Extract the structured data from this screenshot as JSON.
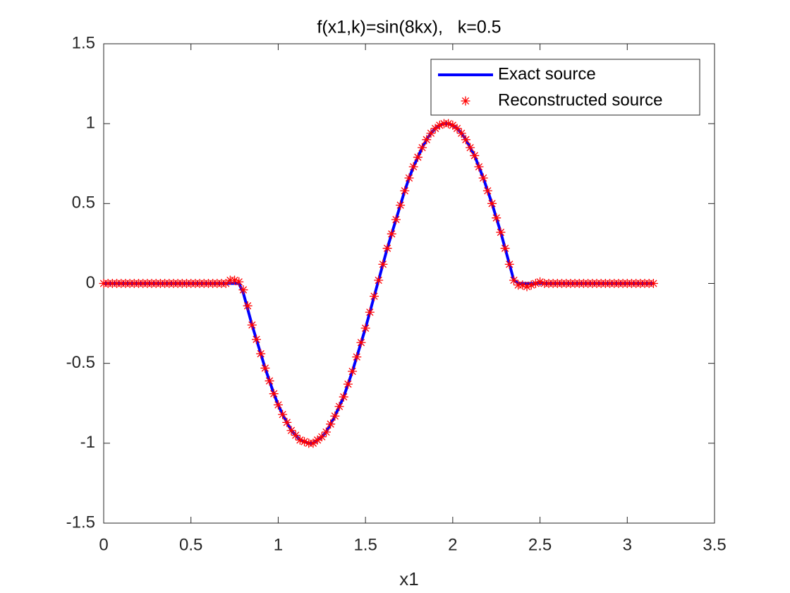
{
  "chart_data": {
    "type": "line",
    "title": "f(x1,k)=sin(8kx),   k=0.5",
    "xlabel": "x1",
    "xlim": [
      0,
      3.5
    ],
    "ylim": [
      -1.5,
      1.5
    ],
    "xticks": [
      0,
      0.5,
      1,
      1.5,
      2,
      2.5,
      3,
      3.5
    ],
    "yticks": [
      -1.5,
      -1,
      -0.5,
      0,
      0.5,
      1,
      1.5
    ],
    "grid": false,
    "legend": "northeast",
    "x": [
      0,
      0.025,
      0.05,
      0.075,
      0.1,
      0.125,
      0.15,
      0.175,
      0.2,
      0.225,
      0.25,
      0.275,
      0.3,
      0.325,
      0.35,
      0.375,
      0.4,
      0.425,
      0.45,
      0.475,
      0.5,
      0.525,
      0.55,
      0.575,
      0.6,
      0.625,
      0.65,
      0.675,
      0.7,
      0.725,
      0.75,
      0.775,
      0.8,
      0.825,
      0.85,
      0.875,
      0.9,
      0.925,
      0.95,
      0.975,
      1,
      1.025,
      1.05,
      1.075,
      1.1,
      1.125,
      1.15,
      1.175,
      1.2,
      1.225,
      1.25,
      1.275,
      1.3,
      1.325,
      1.35,
      1.375,
      1.4,
      1.425,
      1.45,
      1.475,
      1.5,
      1.525,
      1.55,
      1.575,
      1.6,
      1.625,
      1.65,
      1.675,
      1.7,
      1.725,
      1.75,
      1.775,
      1.8,
      1.825,
      1.85,
      1.875,
      1.9,
      1.925,
      1.95,
      1.975,
      2,
      2.025,
      2.05,
      2.075,
      2.1,
      2.125,
      2.15,
      2.175,
      2.2,
      2.225,
      2.25,
      2.275,
      2.3,
      2.325,
      2.35,
      2.375,
      2.4,
      2.425,
      2.45,
      2.475,
      2.5,
      2.525,
      2.55,
      2.575,
      2.6,
      2.625,
      2.65,
      2.675,
      2.7,
      2.725,
      2.75,
      2.775,
      2.8,
      2.825,
      2.85,
      2.875,
      2.9,
      2.925,
      2.95,
      2.975,
      3,
      3.025,
      3.05,
      3.075,
      3.1,
      3.125,
      3.15
    ],
    "series": [
      {
        "name": "Exact source",
        "color": "#0000ff",
        "style": "line",
        "values": [
          0,
          0,
          0,
          0,
          0,
          0,
          0,
          0,
          0,
          0,
          0,
          0,
          0,
          0,
          0,
          0,
          0,
          0,
          0,
          0,
          0,
          0,
          0,
          0,
          0,
          0,
          0,
          0,
          0,
          0,
          0,
          0,
          -0.06,
          -0.16,
          -0.26,
          -0.35,
          -0.44,
          -0.53,
          -0.61,
          -0.69,
          -0.76,
          -0.82,
          -0.87,
          -0.92,
          -0.95,
          -0.98,
          -0.99,
          -1,
          -1,
          -0.98,
          -0.96,
          -0.93,
          -0.88,
          -0.83,
          -0.77,
          -0.71,
          -0.63,
          -0.55,
          -0.46,
          -0.37,
          -0.28,
          -0.18,
          -0.08,
          0.02,
          0.12,
          0.22,
          0.31,
          0.4,
          0.49,
          0.58,
          0.66,
          0.73,
          0.79,
          0.85,
          0.9,
          0.94,
          0.97,
          0.99,
          1,
          1,
          0.99,
          0.97,
          0.94,
          0.9,
          0.85,
          0.8,
          0.73,
          0.66,
          0.58,
          0.5,
          0.41,
          0.32,
          0.22,
          0.12,
          0.02,
          0,
          0,
          0,
          0,
          0,
          0,
          0,
          0,
          0,
          0,
          0,
          0,
          0,
          0,
          0,
          0,
          0,
          0,
          0,
          0,
          0,
          0,
          0,
          0,
          0,
          0,
          0,
          0,
          0,
          0,
          0,
          0
        ]
      },
      {
        "name": "Reconstructed source",
        "color": "#ff0000",
        "style": "marker",
        "values": [
          0,
          0,
          0,
          0,
          0,
          0,
          0,
          0,
          0,
          0,
          0,
          0,
          0,
          0,
          0,
          0,
          0,
          0,
          0,
          0,
          0,
          0,
          0,
          0,
          0,
          0,
          0,
          0,
          0,
          0.02,
          0.02,
          0.01,
          -0.04,
          -0.14,
          -0.26,
          -0.35,
          -0.44,
          -0.53,
          -0.61,
          -0.69,
          -0.76,
          -0.82,
          -0.87,
          -0.92,
          -0.95,
          -0.98,
          -0.99,
          -1,
          -1,
          -0.98,
          -0.96,
          -0.93,
          -0.88,
          -0.83,
          -0.77,
          -0.71,
          -0.63,
          -0.55,
          -0.46,
          -0.37,
          -0.28,
          -0.18,
          -0.08,
          0.02,
          0.12,
          0.22,
          0.31,
          0.4,
          0.49,
          0.58,
          0.66,
          0.73,
          0.79,
          0.85,
          0.9,
          0.94,
          0.97,
          0.99,
          1,
          1,
          0.99,
          0.97,
          0.94,
          0.9,
          0.85,
          0.8,
          0.73,
          0.66,
          0.58,
          0.5,
          0.41,
          0.32,
          0.22,
          0.12,
          0.02,
          -0.01,
          -0.01,
          -0.02,
          -0.01,
          0,
          0.01,
          0,
          0,
          0,
          0,
          0,
          0,
          0,
          0,
          0,
          0,
          0,
          0,
          0,
          0,
          0,
          0,
          0,
          0,
          0,
          0,
          0,
          0,
          0,
          0,
          0,
          0
        ]
      }
    ]
  }
}
